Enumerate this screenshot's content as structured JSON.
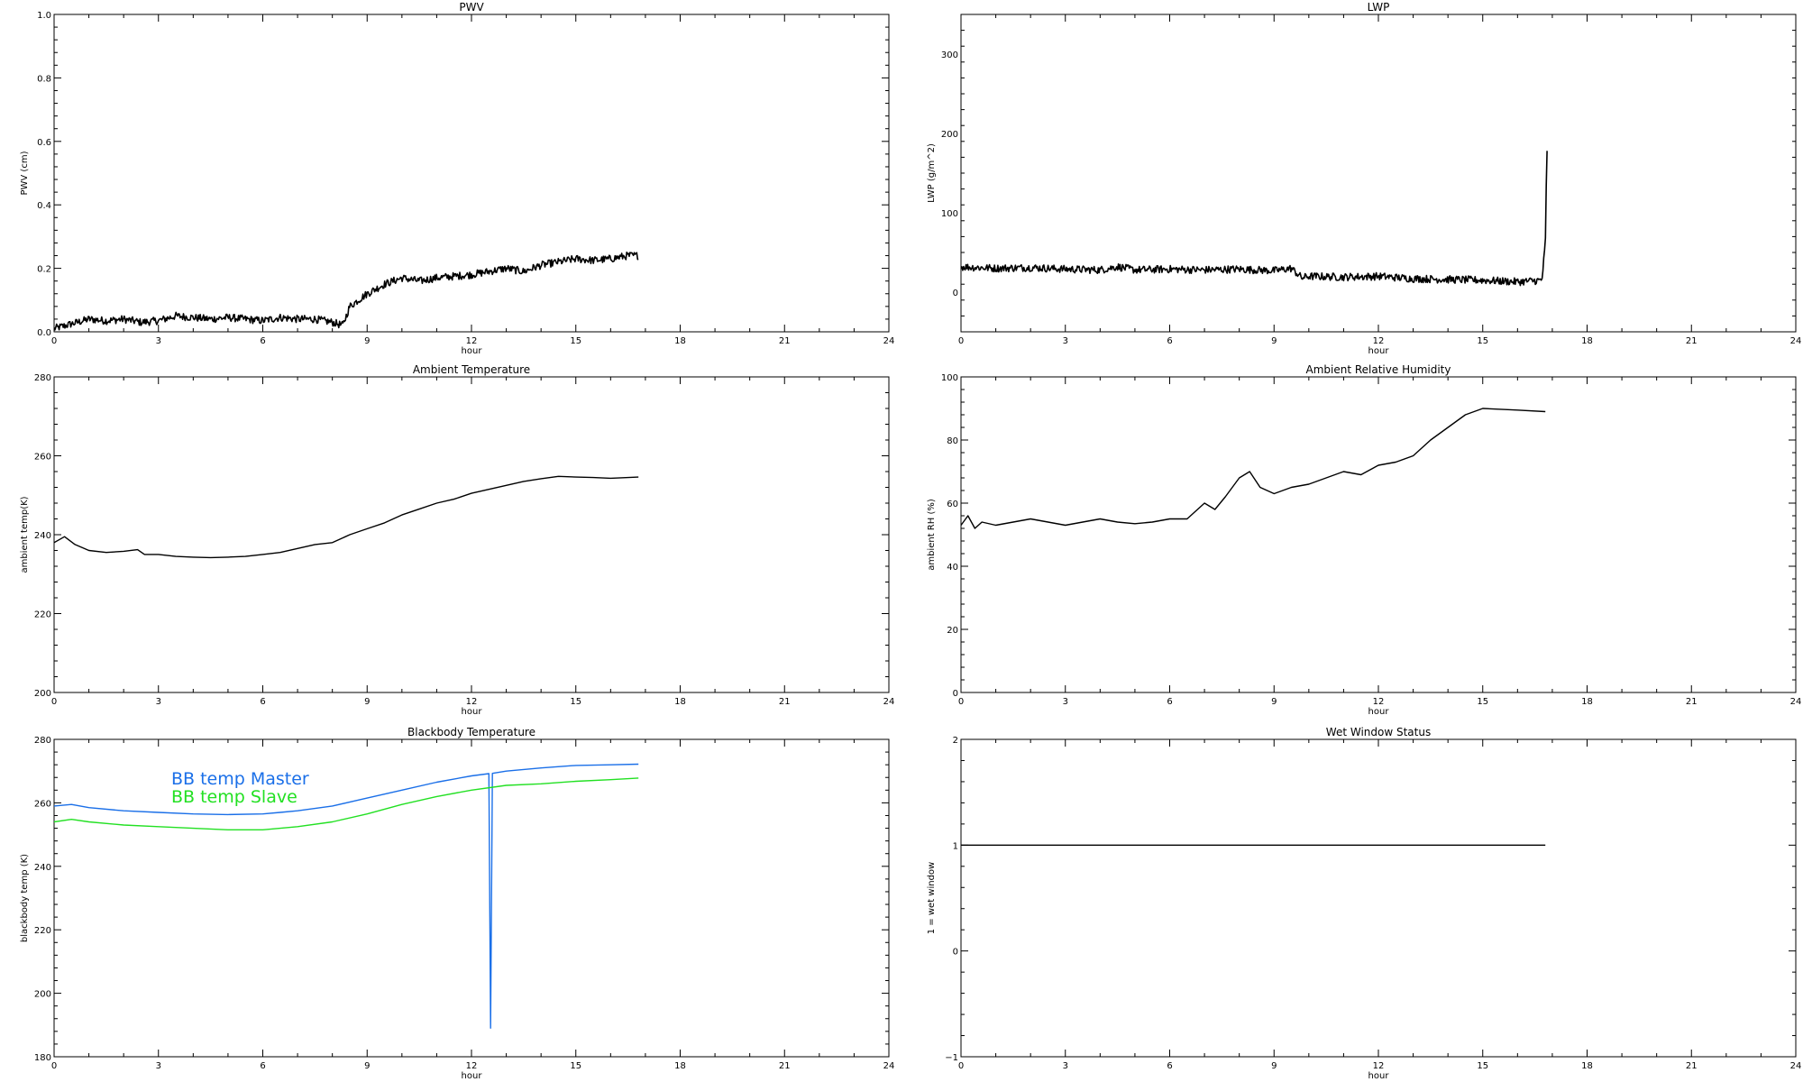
{
  "chart_data": [
    {
      "type": "line",
      "title": "PWV",
      "xlabel": "hour",
      "ylabel": "PWV (cm)",
      "xlim": [
        0,
        24
      ],
      "ylim": [
        0,
        1.0
      ],
      "xticks": [
        0,
        3,
        6,
        9,
        12,
        15,
        18,
        21,
        24
      ],
      "yticks": [
        0.0,
        0.2,
        0.4,
        0.6,
        0.8,
        1.0
      ],
      "ytick_labels": [
        "0.0",
        "0.2",
        "0.4",
        "0.6",
        "0.8",
        "1.0"
      ],
      "series": [
        {
          "color": "#000000",
          "style": "noisy",
          "x": [
            0,
            0.5,
            1,
            1.5,
            2,
            2.5,
            3,
            3.5,
            4,
            4.5,
            5,
            5.5,
            6,
            6.5,
            7,
            7.5,
            8,
            8.3,
            8.5,
            9,
            9.5,
            10,
            10.5,
            11,
            11.5,
            12,
            12.5,
            13,
            13.5,
            14,
            14.5,
            15,
            15.5,
            16,
            16.5,
            16.8
          ],
          "y": [
            0.01,
            0.025,
            0.04,
            0.035,
            0.04,
            0.03,
            0.035,
            0.05,
            0.045,
            0.04,
            0.045,
            0.04,
            0.035,
            0.045,
            0.04,
            0.04,
            0.03,
            0.02,
            0.08,
            0.12,
            0.15,
            0.17,
            0.16,
            0.17,
            0.175,
            0.18,
            0.19,
            0.2,
            0.19,
            0.21,
            0.22,
            0.23,
            0.225,
            0.23,
            0.24,
            0.24
          ]
        }
      ]
    },
    {
      "type": "line",
      "title": "LWP",
      "xlabel": "hour",
      "ylabel": "LWP (g/m^2)",
      "xlim": [
        0,
        24
      ],
      "ylim": [
        -50,
        350
      ],
      "xticks": [
        0,
        3,
        6,
        9,
        12,
        15,
        18,
        21,
        24
      ],
      "yticks": [
        0,
        100,
        200,
        300
      ],
      "ytick_labels": [
        "0",
        "100",
        "200",
        "300"
      ],
      "series": [
        {
          "color": "#000000",
          "style": "noisy",
          "x": [
            0,
            1,
            2,
            3,
            4,
            4.5,
            5,
            6,
            7,
            8,
            9,
            9.5,
            9.8,
            10,
            11,
            12,
            13,
            14,
            15,
            16,
            16.7,
            16.8,
            16.82,
            16.85
          ],
          "y": [
            32,
            30,
            31,
            29,
            28,
            32,
            28,
            29,
            28,
            29,
            27,
            30,
            18,
            20,
            19,
            20,
            17,
            16,
            15,
            13,
            15,
            60,
            120,
            180
          ]
        }
      ]
    },
    {
      "type": "line",
      "title": "Ambient Temperature",
      "xlabel": "hour",
      "ylabel": "ambient temp(K)",
      "xlim": [
        0,
        24
      ],
      "ylim": [
        200,
        280
      ],
      "xticks": [
        0,
        3,
        6,
        9,
        12,
        15,
        18,
        21,
        24
      ],
      "yticks": [
        200,
        220,
        240,
        260,
        280
      ],
      "ytick_labels": [
        "200",
        "220",
        "240",
        "260",
        "280"
      ],
      "series": [
        {
          "color": "#000000",
          "style": "smooth",
          "x": [
            0,
            0.3,
            0.6,
            1,
            1.5,
            2,
            2.4,
            2.6,
            3,
            3.5,
            4,
            4.5,
            5,
            5.5,
            6,
            6.5,
            7,
            7.5,
            8,
            8.5,
            9,
            9.5,
            10,
            10.5,
            11,
            11.5,
            12,
            12.5,
            13,
            13.5,
            14,
            14.5,
            15,
            15.5,
            16,
            16.8
          ],
          "y": [
            238,
            239.5,
            237.5,
            236,
            235.5,
            235.8,
            236.2,
            235,
            235,
            234.5,
            234.3,
            234.2,
            234.3,
            234.5,
            235,
            235.5,
            236.5,
            237.5,
            238,
            240,
            241.5,
            243,
            245,
            246.5,
            248,
            249,
            250.5,
            251.5,
            252.5,
            253.5,
            254.2,
            254.8,
            254.6,
            254.5,
            254.3,
            254.6
          ]
        }
      ]
    },
    {
      "type": "line",
      "title": "Ambient Relative Humidity",
      "xlabel": "hour",
      "ylabel": "ambient RH (%)",
      "xlim": [
        0,
        24
      ],
      "ylim": [
        0,
        100
      ],
      "xticks": [
        0,
        3,
        6,
        9,
        12,
        15,
        18,
        21,
        24
      ],
      "yticks": [
        0,
        20,
        40,
        60,
        80,
        100
      ],
      "ytick_labels": [
        "0",
        "20",
        "40",
        "60",
        "80",
        "100"
      ],
      "series": [
        {
          "color": "#000000",
          "style": "smooth",
          "x": [
            0,
            0.2,
            0.4,
            0.6,
            1,
            1.5,
            2,
            2.5,
            3,
            3.5,
            4,
            4.5,
            5,
            5.5,
            6,
            6.5,
            7,
            7.3,
            7.6,
            8,
            8.3,
            8.6,
            9,
            9.5,
            10,
            10.5,
            11,
            11.5,
            12,
            12.5,
            13,
            13.5,
            14,
            14.5,
            15,
            16,
            16.8
          ],
          "y": [
            53,
            56,
            52,
            54,
            53,
            54,
            55,
            54,
            53,
            54,
            55,
            54,
            53.5,
            54,
            55,
            55,
            60,
            58,
            62,
            68,
            70,
            65,
            63,
            65,
            66,
            68,
            70,
            69,
            72,
            73,
            75,
            80,
            84,
            88,
            90,
            89.5,
            89
          ]
        }
      ]
    },
    {
      "type": "line",
      "title": "Blackbody Temperature",
      "xlabel": "hour",
      "ylabel": "blackbody temp (K)",
      "xlim": [
        0,
        24
      ],
      "ylim": [
        180,
        280
      ],
      "xticks": [
        0,
        3,
        6,
        9,
        12,
        15,
        18,
        21,
        24
      ],
      "yticks": [
        180,
        200,
        220,
        240,
        260,
        280
      ],
      "ytick_labels": [
        "180",
        "200",
        "220",
        "240",
        "260",
        "280"
      ],
      "legend": "top-left",
      "series": [
        {
          "name": "BB temp Master",
          "color": "#1a6fe8",
          "style": "smooth",
          "x": [
            0,
            0.5,
            1,
            2,
            3,
            4,
            5,
            6,
            6.5,
            7,
            8,
            9,
            10,
            11,
            12,
            12.5,
            12.55,
            12.6,
            13,
            14,
            15,
            16,
            16.8
          ],
          "y": [
            259,
            259.5,
            258.5,
            257.5,
            257,
            256.5,
            256.3,
            256.5,
            257,
            257.5,
            259,
            261.5,
            264,
            266.5,
            268.5,
            269.2,
            189,
            269.3,
            270,
            271,
            271.8,
            272,
            272.2
          ]
        },
        {
          "name": "BB temp Slave",
          "color": "#22e022",
          "style": "smooth",
          "x": [
            0,
            0.5,
            1,
            2,
            3,
            4,
            5,
            6,
            6.5,
            7,
            8,
            9,
            10,
            11,
            12,
            13,
            14,
            15,
            16,
            16.8
          ],
          "y": [
            254,
            254.8,
            254,
            253,
            252.5,
            252,
            251.5,
            251.5,
            252,
            252.5,
            254,
            256.5,
            259.5,
            262,
            264,
            265.5,
            266,
            266.8,
            267.3,
            267.8
          ]
        }
      ]
    },
    {
      "type": "line",
      "title": "Wet Window Status",
      "xlabel": "hour",
      "ylabel": "1 = wet window",
      "xlim": [
        0,
        24
      ],
      "ylim": [
        -1,
        2
      ],
      "xticks": [
        0,
        3,
        6,
        9,
        12,
        15,
        18,
        21,
        24
      ],
      "yticks": [
        -1,
        0,
        1,
        2
      ],
      "ytick_labels": [
        "−1",
        "0",
        "1",
        "2"
      ],
      "series": [
        {
          "color": "#000000",
          "style": "smooth",
          "x": [
            0,
            16.8
          ],
          "y": [
            1,
            1
          ]
        }
      ]
    }
  ]
}
